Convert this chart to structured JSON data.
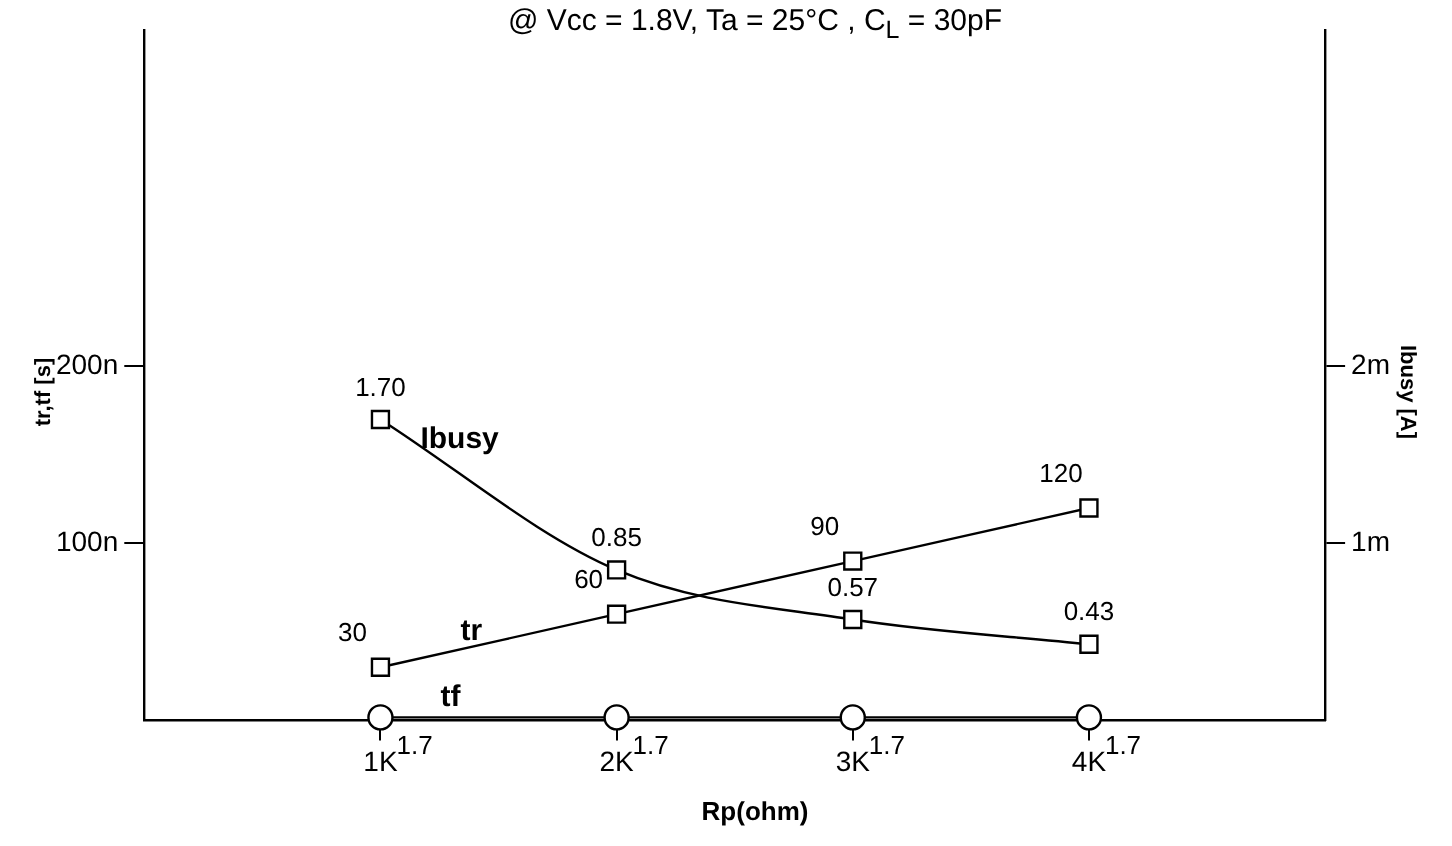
{
  "chart_data": {
    "type": "line",
    "title": "@ Vcc = 1.8V,  Ta = 25°C , C$_{L}$ = 30pF",
    "xlabel": "Rp(ohm)",
    "ylabel": "tr,tf [s]",
    "y2label": "Ibusy [A]",
    "x": [
      1,
      2,
      3,
      4
    ],
    "xlim": [
      0,
      5
    ],
    "xticks": [
      {
        "value": 1,
        "label": "1K"
      },
      {
        "value": 2,
        "label": "2K"
      },
      {
        "value": 3,
        "label": "3K"
      },
      {
        "value": 4,
        "label": "4K"
      }
    ],
    "ylim": [
      0,
      390
    ],
    "yticks": [
      {
        "value": 100,
        "label": "100n"
      },
      {
        "value": 200,
        "label": "200n"
      }
    ],
    "y2lim": [
      0,
      3.9
    ],
    "y2ticks": [
      {
        "value": 1,
        "label": "1m"
      },
      {
        "value": 2,
        "label": "2m"
      }
    ],
    "series": [
      {
        "name": "Ibusy",
        "color": "#000000",
        "axis": "y2",
        "marker": "square",
        "values": [
          1.7,
          0.85,
          0.57,
          0.43
        ],
        "value_labels": [
          "1.70",
          "0.85",
          "0.57",
          "0.43"
        ]
      },
      {
        "name": "tr",
        "color": "#000000",
        "marker": "square",
        "values": [
          30,
          60,
          90,
          120
        ],
        "value_labels": [
          "30",
          "60",
          "90",
          "120"
        ]
      },
      {
        "name": "tf",
        "color": "#000000",
        "marker": "circle",
        "values": [
          1.7,
          1.7,
          1.7,
          1.7
        ],
        "value_labels": [
          "1.7",
          "1.7",
          "1.7",
          "1.7"
        ]
      }
    ],
    "grid": false,
    "legend": false,
    "line_style": "solid"
  }
}
